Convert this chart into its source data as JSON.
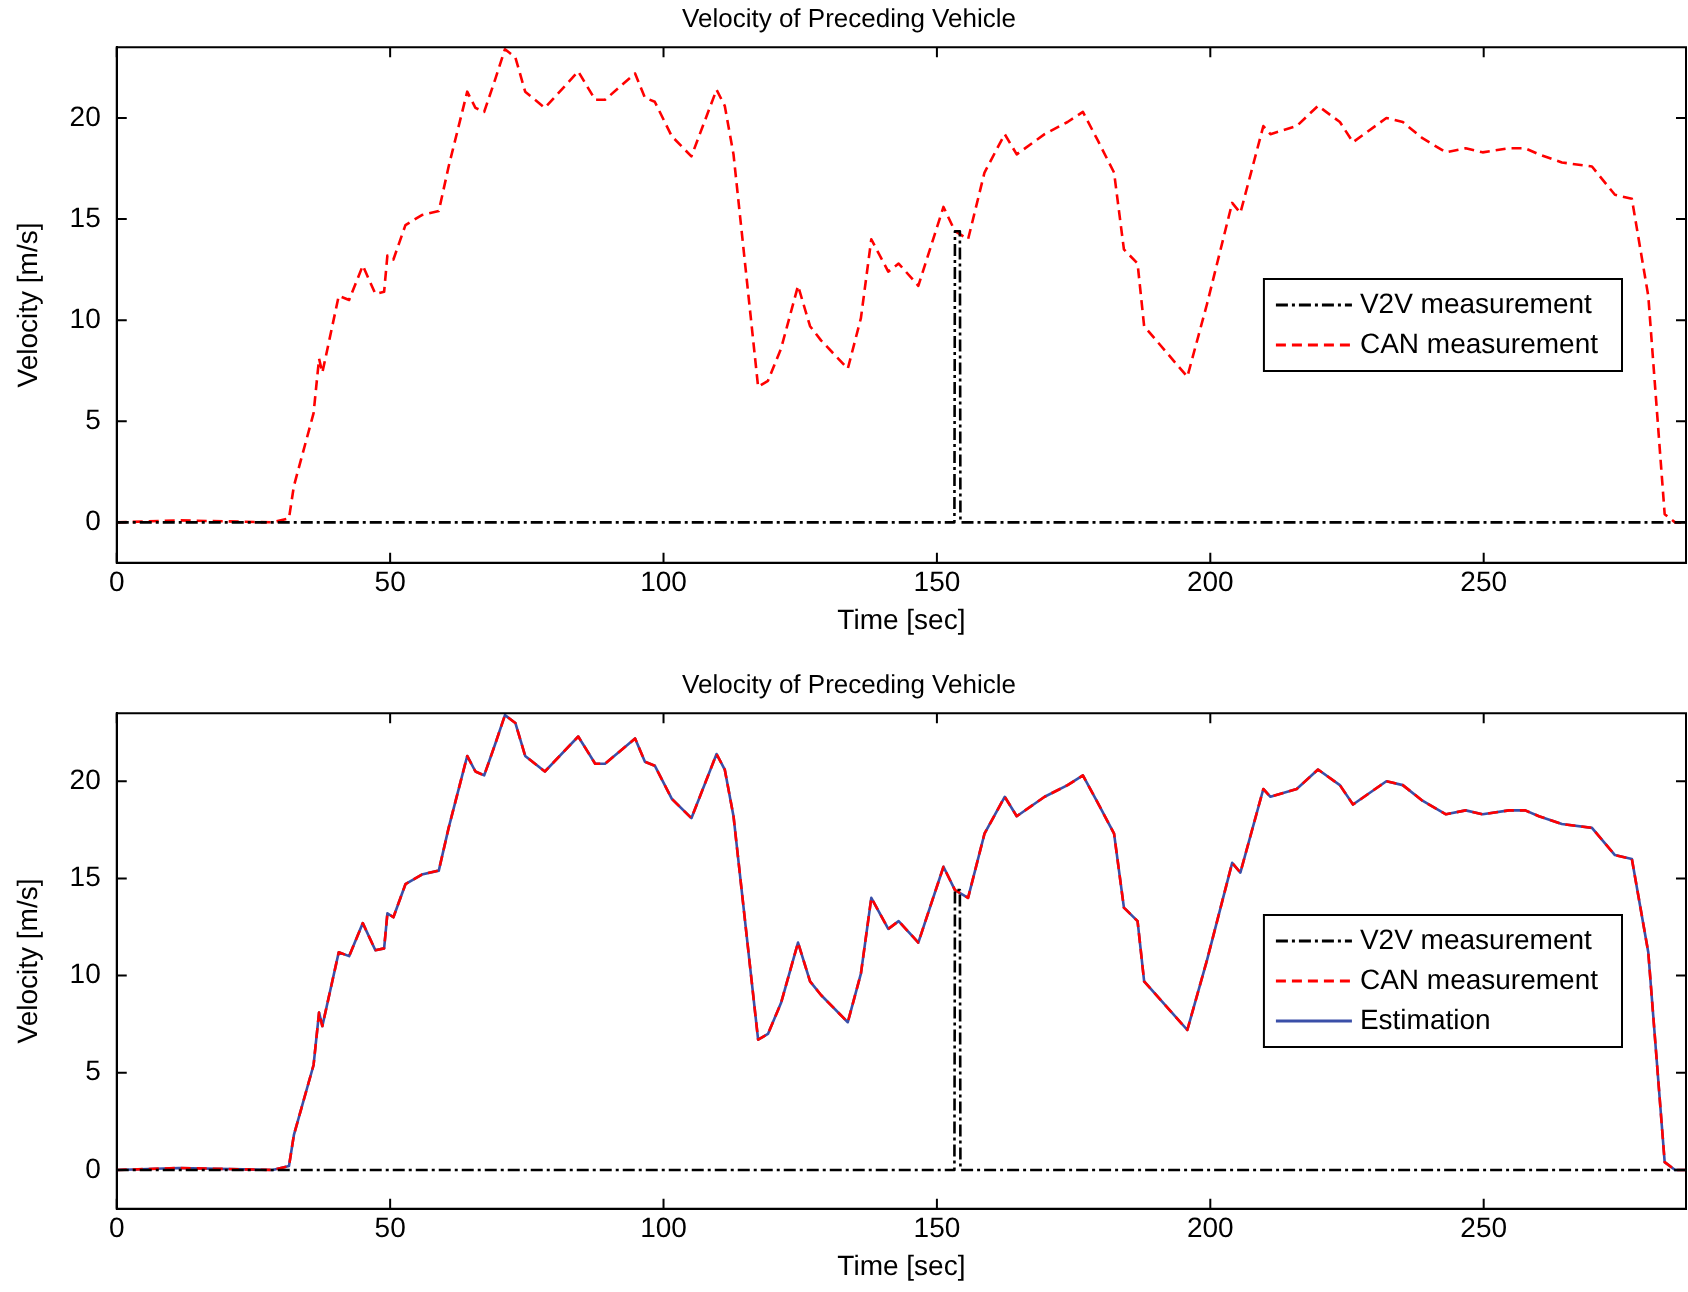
{
  "chart_data": [
    {
      "type": "line",
      "title": "Velocity of Preceding Vehicle",
      "xlabel": "Time [sec]",
      "ylabel": "Velocity [m/s]",
      "xlim": [
        0,
        287
      ],
      "xticks": [
        0,
        50,
        100,
        150,
        200,
        250
      ],
      "ylim": [
        -2,
        23.5
      ],
      "yticks": [
        0,
        5,
        10,
        15,
        20
      ],
      "grid": false,
      "legend": "right",
      "marker": "none",
      "series": [
        {
          "name": "V2V measurement",
          "color": "#000000",
          "line_style": "dashdot",
          "x": [
            0,
            153.2,
            153.3,
            154.2,
            154.3,
            287
          ],
          "values": [
            0,
            0,
            14.4,
            14.4,
            0,
            0
          ]
        },
        {
          "name": "CAN measurement",
          "color": "#ff0000",
          "line_style": "dashed",
          "x": [
            0,
            11.4,
            28.5,
            31.5,
            32.4,
            36,
            37,
            37.6,
            40.6,
            42.5,
            45,
            47.3,
            48.9,
            49.5,
            50.6,
            52.8,
            55.8,
            58.9,
            60.7,
            64.1,
            65.6,
            67.2,
            69.2,
            71,
            72.9,
            74.7,
            78.3,
            84.4,
            87.5,
            89.3,
            94.8,
            96.6,
            98.4,
            101.5,
            105.1,
            109.7,
            111.2,
            112.8,
            117.3,
            119.1,
            121.5,
            124.6,
            126.8,
            128.8,
            133.7,
            136.1,
            138,
            141.1,
            143,
            146.6,
            151.2,
            153.3,
            155.7,
            158.7,
            162.4,
            164.6,
            169.7,
            173.9,
            176.7,
            179.4,
            182.4,
            184.2,
            186.7,
            187.9,
            195.8,
            199.4,
            204,
            205.5,
            209.7,
            211,
            215.8,
            219.7,
            223.7,
            226.1,
            232.2,
            235.2,
            238.8,
            243.1,
            246.7,
            249.8,
            254.6,
            257.6,
            260.1,
            264.3,
            269.8,
            274,
            277.1,
            280.1,
            283.1,
            285,
            287
          ],
          "values": [
            0,
            0.1,
            0,
            0.2,
            1.8,
            5.4,
            8.1,
            7.4,
            11.2,
            11,
            12.7,
            11.3,
            11.4,
            13.2,
            13,
            14.7,
            15.2,
            15.4,
            17.6,
            21.3,
            20.5,
            20.3,
            21.9,
            23.4,
            23,
            21.3,
            20.5,
            22.3,
            20.9,
            20.9,
            22.2,
            21,
            20.8,
            19.1,
            18.1,
            21.4,
            20.6,
            18.2,
            6.7,
            7,
            8.6,
            11.7,
            9.7,
            9,
            7.6,
            10.1,
            14,
            12.4,
            12.8,
            11.7,
            15.6,
            14.4,
            14,
            17.3,
            19.2,
            18.2,
            19.2,
            19.8,
            20.3,
            18.9,
            17.3,
            13.5,
            12.8,
            9.7,
            7.2,
            10.8,
            15.8,
            15.3,
            19.6,
            19.2,
            19.6,
            20.6,
            19.8,
            18.8,
            20,
            19.8,
            19,
            18.3,
            18.5,
            18.3,
            18.5,
            18.5,
            18.2,
            17.8,
            17.6,
            16.2,
            16,
            11.2,
            0.4,
            0,
            0
          ]
        }
      ]
    },
    {
      "type": "line",
      "title": "Velocity of Preceding Vehicle",
      "xlabel": "Time [sec]",
      "ylabel": "Velocity [m/s]",
      "xlim": [
        0,
        287
      ],
      "xticks": [
        0,
        50,
        100,
        150,
        200,
        250
      ],
      "ylim": [
        -2,
        23.5
      ],
      "yticks": [
        0,
        5,
        10,
        15,
        20
      ],
      "grid": false,
      "legend": "right",
      "marker": "none",
      "series": [
        {
          "name": "V2V measurement",
          "color": "#000000",
          "line_style": "dashdot",
          "x": [
            0,
            153.2,
            153.3,
            154.2,
            154.3,
            287
          ],
          "values": [
            0,
            0,
            14.4,
            14.4,
            0,
            0
          ]
        },
        {
          "name": "CAN measurement",
          "color": "#ff0000",
          "line_style": "dashed",
          "x": [
            0,
            11.4,
            28.5,
            31.5,
            32.4,
            36,
            37,
            37.6,
            40.6,
            42.5,
            45,
            47.3,
            48.9,
            49.5,
            50.6,
            52.8,
            55.8,
            58.9,
            60.7,
            64.1,
            65.6,
            67.2,
            69.2,
            71,
            72.9,
            74.7,
            78.3,
            84.4,
            87.5,
            89.3,
            94.8,
            96.6,
            98.4,
            101.5,
            105.1,
            109.7,
            111.2,
            112.8,
            117.3,
            119.1,
            121.5,
            124.6,
            126.8,
            128.8,
            133.7,
            136.1,
            138,
            141.1,
            143,
            146.6,
            151.2,
            153.3,
            155.7,
            158.7,
            162.4,
            164.6,
            169.7,
            173.9,
            176.7,
            179.4,
            182.4,
            184.2,
            186.7,
            187.9,
            195.8,
            199.4,
            204,
            205.5,
            209.7,
            211,
            215.8,
            219.7,
            223.7,
            226.1,
            232.2,
            235.2,
            238.8,
            243.1,
            246.7,
            249.8,
            254.6,
            257.6,
            260.1,
            264.3,
            269.8,
            274,
            277.1,
            280.1,
            283.1,
            285,
            287
          ],
          "values": [
            0,
            0.1,
            0,
            0.2,
            1.8,
            5.4,
            8.1,
            7.4,
            11.2,
            11,
            12.7,
            11.3,
            11.4,
            13.2,
            13,
            14.7,
            15.2,
            15.4,
            17.6,
            21.3,
            20.5,
            20.3,
            21.9,
            23.4,
            23,
            21.3,
            20.5,
            22.3,
            20.9,
            20.9,
            22.2,
            21,
            20.8,
            19.1,
            18.1,
            21.4,
            20.6,
            18.2,
            6.7,
            7,
            8.6,
            11.7,
            9.7,
            9,
            7.6,
            10.1,
            14,
            12.4,
            12.8,
            11.7,
            15.6,
            14.4,
            14,
            17.3,
            19.2,
            18.2,
            19.2,
            19.8,
            20.3,
            18.9,
            17.3,
            13.5,
            12.8,
            9.7,
            7.2,
            10.8,
            15.8,
            15.3,
            19.6,
            19.2,
            19.6,
            20.6,
            19.8,
            18.8,
            20,
            19.8,
            19,
            18.3,
            18.5,
            18.3,
            18.5,
            18.5,
            18.2,
            17.8,
            17.6,
            16.2,
            16,
            11.2,
            0.4,
            0,
            0
          ]
        },
        {
          "name": "Estimation",
          "color": "#3a4fa8",
          "line_style": "solid",
          "x": [
            0,
            11.4,
            28.5,
            31.5,
            32.4,
            36,
            37,
            37.6,
            40.6,
            42.5,
            45,
            47.3,
            48.9,
            49.5,
            50.6,
            52.8,
            55.8,
            58.9,
            60.7,
            64.1,
            65.6,
            67.2,
            69.2,
            71,
            72.9,
            74.7,
            78.3,
            84.4,
            87.5,
            89.3,
            94.8,
            96.6,
            98.4,
            101.5,
            105.1,
            109.7,
            111.2,
            112.8,
            117.3,
            119.1,
            121.5,
            124.6,
            126.8,
            128.8,
            133.7,
            136.1,
            138,
            141.1,
            143,
            146.6,
            151.2,
            153.3,
            155.7,
            158.7,
            162.4,
            164.6,
            169.7,
            173.9,
            176.7,
            179.4,
            182.4,
            184.2,
            186.7,
            187.9,
            195.8,
            199.4,
            204,
            205.5,
            209.7,
            211,
            215.8,
            219.7,
            223.7,
            226.1,
            232.2,
            235.2,
            238.8,
            243.1,
            246.7,
            249.8,
            254.6,
            257.6,
            260.1,
            264.3,
            269.8,
            274,
            277.1,
            280.1,
            283.1,
            285,
            287
          ],
          "values": [
            0,
            0.1,
            0,
            0.2,
            1.8,
            5.4,
            8.1,
            7.4,
            11.2,
            11,
            12.7,
            11.3,
            11.4,
            13.2,
            13,
            14.7,
            15.2,
            15.4,
            17.6,
            21.3,
            20.5,
            20.3,
            21.9,
            23.4,
            23,
            21.3,
            20.5,
            22.3,
            20.9,
            20.9,
            22.2,
            21,
            20.8,
            19.1,
            18.1,
            21.4,
            20.6,
            18.2,
            6.7,
            7,
            8.6,
            11.7,
            9.7,
            9,
            7.6,
            10.1,
            14,
            12.4,
            12.8,
            11.7,
            15.6,
            14.4,
            14,
            17.3,
            19.2,
            18.2,
            19.2,
            19.8,
            20.3,
            18.9,
            17.3,
            13.5,
            12.8,
            9.7,
            7.2,
            10.8,
            15.8,
            15.3,
            19.6,
            19.2,
            19.6,
            20.6,
            19.8,
            18.8,
            20,
            19.8,
            19,
            18.3,
            18.5,
            18.3,
            18.5,
            18.5,
            18.2,
            17.8,
            17.6,
            16.2,
            16,
            11.2,
            0.4,
            0,
            0
          ]
        }
      ]
    }
  ]
}
